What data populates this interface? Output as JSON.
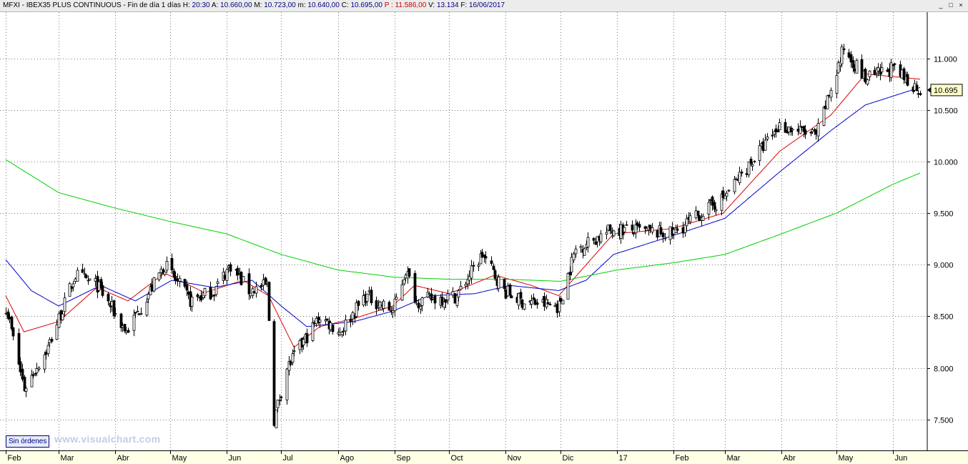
{
  "header": {
    "symbol": "MFXI",
    "name": "IBEX35 PLUS CONTINUOUS",
    "period": "Fin de día 1 días",
    "fields": [
      {
        "label": "H:",
        "value": "20:30"
      },
      {
        "label": "A:",
        "value": "10.660,00"
      },
      {
        "label": "M:",
        "value": "10.723,00"
      },
      {
        "label": "m:",
        "value": "10.640,00"
      },
      {
        "label": "C:",
        "value": "10.695,00"
      },
      {
        "label": "P :",
        "value": "11.586,00"
      },
      {
        "label": "V:",
        "value": "13.134"
      },
      {
        "label": "F:",
        "value": "16/06/2017"
      }
    ],
    "window_controls": [
      "_",
      "□",
      "×"
    ]
  },
  "badge": "Sin órdenes",
  "watermark": "www.visualchart.com",
  "colors": {
    "value_color": "#000080",
    "price_color": "#cc0000",
    "ma_short": "#e00000",
    "ma_mid": "#0000cc",
    "ma_long": "#00d000",
    "grid": "#7a7a7a"
  },
  "chart_data": {
    "type": "candlestick",
    "x_range": [
      "2016-02-01",
      "2017-06-16"
    ],
    "ylim": [
      7200,
      11450
    ],
    "y_ticks": [
      7500,
      8000,
      8500,
      9000,
      9500,
      10000,
      10500,
      11000
    ],
    "y_tick_labels": [
      "7.500",
      "8.000",
      "8.500",
      "9.000",
      "9.500",
      "10.000",
      "10.500",
      "11.000"
    ],
    "x_tick_labels": [
      "Feb",
      "Mar",
      "Abr",
      "May",
      "Jun",
      "Jul",
      "Ago",
      "Sep",
      "Oct",
      "Nov",
      "Dic",
      "17",
      "Feb",
      "Mar",
      "Abr",
      "May",
      "Jun"
    ],
    "last_value_label": "10.695",
    "grid": true,
    "close_anchors": [
      [
        "2016-02-01",
        8600
      ],
      [
        "2016-02-11",
        7800
      ],
      [
        "2016-02-24",
        8200
      ],
      [
        "2016-03-10",
        8900
      ],
      [
        "2016-03-22",
        8800
      ],
      [
        "2016-04-07",
        8350
      ],
      [
        "2016-04-28",
        9000
      ],
      [
        "2016-05-12",
        8650
      ],
      [
        "2016-05-25",
        8750
      ],
      [
        "2016-06-03",
        9000
      ],
      [
        "2016-06-13",
        8750
      ],
      [
        "2016-06-23",
        8800
      ],
      [
        "2016-06-27",
        7500
      ],
      [
        "2016-07-04",
        8000
      ],
      [
        "2016-07-11",
        8200
      ],
      [
        "2016-07-22",
        8500
      ],
      [
        "2016-08-02",
        8350
      ],
      [
        "2016-08-16",
        8700
      ],
      [
        "2016-08-31",
        8550
      ],
      [
        "2016-09-07",
        8950
      ],
      [
        "2016-09-13",
        8650
      ],
      [
        "2016-10-05",
        8700
      ],
      [
        "2016-10-19",
        9100
      ],
      [
        "2016-10-31",
        8750
      ],
      [
        "2016-11-09",
        8650
      ],
      [
        "2016-11-30",
        8600
      ],
      [
        "2016-12-09",
        9150
      ],
      [
        "2016-12-30",
        9350
      ],
      [
        "2017-01-31",
        9300
      ],
      [
        "2017-02-28",
        9650
      ],
      [
        "2017-03-31",
        10350
      ],
      [
        "2017-04-20",
        10250
      ],
      [
        "2017-05-05",
        11100
      ],
      [
        "2017-05-17",
        10800
      ],
      [
        "2017-05-31",
        10900
      ],
      [
        "2017-06-16",
        10695
      ]
    ],
    "series": [
      {
        "type": "line",
        "color": "#e00000",
        "values": [
          [
            "2016-02-01",
            8700
          ],
          [
            "2016-02-11",
            8350
          ],
          [
            "2016-03-01",
            8450
          ],
          [
            "2016-03-22",
            8780
          ],
          [
            "2016-04-08",
            8650
          ],
          [
            "2016-04-28",
            8920
          ],
          [
            "2016-05-20",
            8730
          ],
          [
            "2016-06-10",
            8850
          ],
          [
            "2016-06-24",
            8700
          ],
          [
            "2016-07-08",
            8200
          ],
          [
            "2016-07-22",
            8400
          ],
          [
            "2016-08-10",
            8480
          ],
          [
            "2016-08-31",
            8600
          ],
          [
            "2016-09-12",
            8800
          ],
          [
            "2016-10-01",
            8720
          ],
          [
            "2016-10-26",
            8900
          ],
          [
            "2016-11-15",
            8800
          ],
          [
            "2016-11-30",
            8700
          ],
          [
            "2016-12-15",
            9000
          ],
          [
            "2016-12-30",
            9300
          ],
          [
            "2017-01-31",
            9350
          ],
          [
            "2017-02-28",
            9500
          ],
          [
            "2017-03-31",
            10100
          ],
          [
            "2017-04-28",
            10450
          ],
          [
            "2017-05-17",
            10850
          ],
          [
            "2017-06-16",
            10800
          ]
        ]
      },
      {
        "type": "line",
        "color": "#0000cc",
        "values": [
          [
            "2016-02-01",
            9050
          ],
          [
            "2016-02-15",
            8750
          ],
          [
            "2016-03-01",
            8600
          ],
          [
            "2016-03-24",
            8800
          ],
          [
            "2016-04-12",
            8650
          ],
          [
            "2016-05-02",
            8850
          ],
          [
            "2016-05-25",
            8780
          ],
          [
            "2016-06-15",
            8850
          ],
          [
            "2016-07-01",
            8600
          ],
          [
            "2016-07-15",
            8400
          ],
          [
            "2016-08-10",
            8450
          ],
          [
            "2016-08-31",
            8550
          ],
          [
            "2016-09-20",
            8700
          ],
          [
            "2016-10-15",
            8720
          ],
          [
            "2016-11-03",
            8800
          ],
          [
            "2016-11-30",
            8750
          ],
          [
            "2016-12-15",
            8850
          ],
          [
            "2016-12-30",
            9100
          ],
          [
            "2017-01-31",
            9280
          ],
          [
            "2017-03-01",
            9450
          ],
          [
            "2017-03-31",
            9900
          ],
          [
            "2017-04-28",
            10300
          ],
          [
            "2017-05-17",
            10550
          ],
          [
            "2017-06-16",
            10720
          ]
        ]
      },
      {
        "type": "line",
        "color": "#00d000",
        "values": [
          [
            "2016-02-01",
            10020
          ],
          [
            "2016-03-01",
            9700
          ],
          [
            "2016-04-01",
            9550
          ],
          [
            "2016-05-01",
            9420
          ],
          [
            "2016-06-01",
            9300
          ],
          [
            "2016-07-01",
            9100
          ],
          [
            "2016-08-01",
            8950
          ],
          [
            "2016-09-01",
            8880
          ],
          [
            "2016-10-01",
            8860
          ],
          [
            "2016-11-01",
            8860
          ],
          [
            "2016-12-01",
            8840
          ],
          [
            "2017-01-01",
            8950
          ],
          [
            "2017-02-01",
            9020
          ],
          [
            "2017-03-01",
            9100
          ],
          [
            "2017-04-01",
            9300
          ],
          [
            "2017-05-01",
            9500
          ],
          [
            "2017-06-01",
            9780
          ],
          [
            "2017-06-16",
            9890
          ]
        ]
      }
    ]
  }
}
